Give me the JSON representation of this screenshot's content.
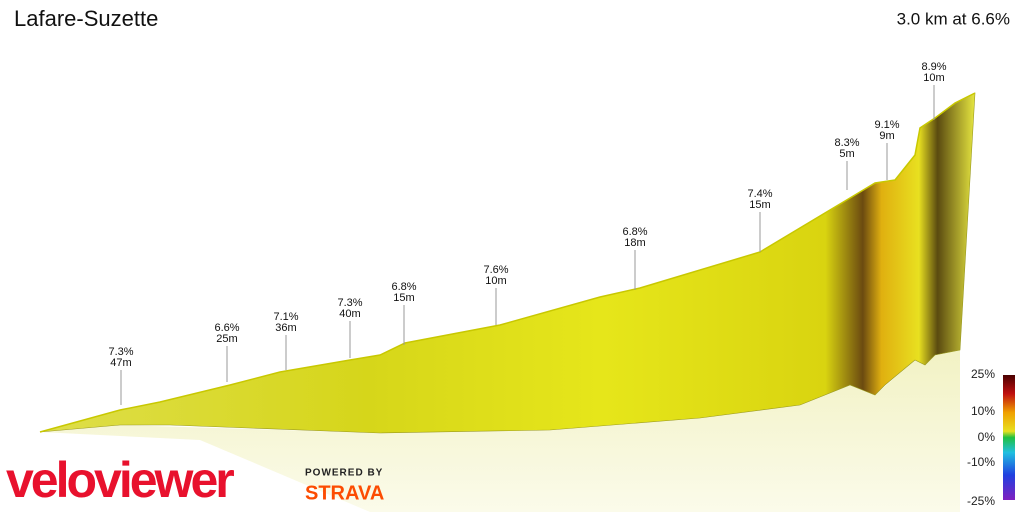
{
  "header": {
    "title": "Lafare-Suzette",
    "summary": "3.0 km at 6.6%"
  },
  "annotations": [
    {
      "grade": "7.3%",
      "length": "47m"
    },
    {
      "grade": "6.6%",
      "length": "25m"
    },
    {
      "grade": "7.1%",
      "length": "36m"
    },
    {
      "grade": "7.3%",
      "length": "40m"
    },
    {
      "grade": "6.8%",
      "length": "15m"
    },
    {
      "grade": "7.6%",
      "length": "10m"
    },
    {
      "grade": "6.8%",
      "length": "18m"
    },
    {
      "grade": "7.4%",
      "length": "15m"
    },
    {
      "grade": "8.3%",
      "length": "5m"
    },
    {
      "grade": "9.1%",
      "length": "9m"
    },
    {
      "grade": "8.9%",
      "length": "10m"
    }
  ],
  "legend": {
    "labels": [
      "25%",
      "10%",
      "0%",
      "-10%",
      "-25%"
    ]
  },
  "branding": {
    "logo": "veloviewer",
    "powered": "POWERED BY",
    "partner": "STRAVA"
  }
}
